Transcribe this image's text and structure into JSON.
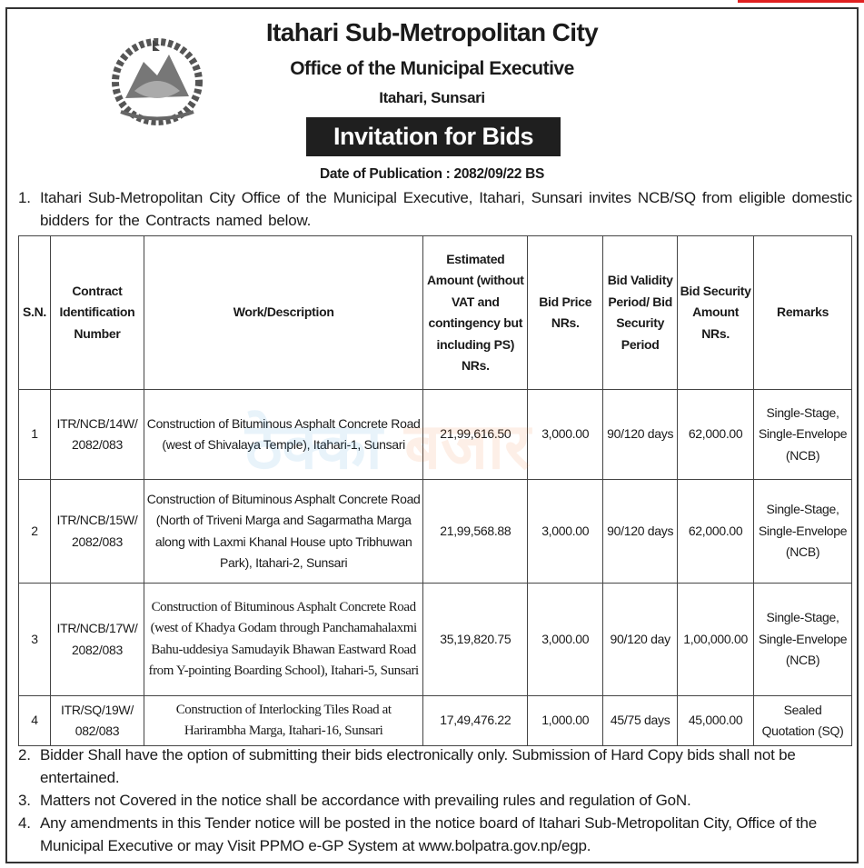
{
  "header": {
    "org": "Itahari Sub-Metropolitan City",
    "office": "Office of the Municipal Executive",
    "location": "Itahari, Sunsari",
    "title": "Invitation for Bids",
    "date": "Date of Publication : 2082/09/22 BS",
    "emblem_icon": "nepal-government-emblem"
  },
  "watermark": {
    "part1": "ठेक्का",
    "part2": "बजार"
  },
  "paragraphs": [
    {
      "num": "1.",
      "text": "Itahari Sub-Metropolitan City Office of the Municipal Executive, Itahari, Sunsari invites NCB/SQ from eligible domestic bidders for the Contracts named below."
    },
    {
      "num": "2.",
      "text": "Bidder Shall have the option of submitting their bids electronically only. Submission of Hard Copy bids shall not be entertained."
    },
    {
      "num": "3.",
      "text": "Matters not Covered in the notice shall be accordance with prevailing rules and regulation of GoN."
    },
    {
      "num": "4.",
      "text": "Any amendments in this Tender notice will be posted in the notice board of Itahari Sub-Metropolitan City, Office of the Municipal Executive or may Visit PPMO e-GP System at www.bolpatra.gov.np/egp."
    }
  ],
  "table": {
    "headers": [
      "S.N.",
      "Contract Identification Number",
      "Work/Description",
      "Estimated Amount (without VAT and contingency but including PS) NRs.",
      "Bid Price NRs.",
      "Bid Validity Period/ Bid Security Period",
      "Bid Security Amount NRs.",
      "Remarks"
    ],
    "rows": [
      [
        "1",
        "ITR/NCB/14W/ 2082/083",
        "Construction of Bituminous Asphalt Concrete Road (west of Shivalaya Temple), Itahari-1, Sunsari",
        "21,99,616.50",
        "3,000.00",
        "90/120 days",
        "62,000.00",
        "Single-Stage, Single-Envelope (NCB)"
      ],
      [
        "2",
        "ITR/NCB/15W/ 2082/083",
        "Construction of Bituminous Asphalt Concrete Road (North of Triveni Marga and Sagarmatha Marga along with Laxmi Khanal House upto Tribhuwan Park), Itahari-2, Sunsari",
        "21,99,568.88",
        "3,000.00",
        "90/120 days",
        "62,000.00",
        "Single-Stage, Single-Envelope (NCB)"
      ],
      [
        "3",
        "ITR/NCB/17W/ 2082/083",
        "Construction of Bituminous Asphalt Concrete Road (west of Khadya Godam through Panchamahalaxmi Bahu-uddesiya Samudayik Bhawan Eastward Road from Y-pointing Boarding School), Itahari-5, Sunsari",
        "35,19,820.75",
        "3,000.00",
        "90/120 day",
        "1,00,000.00",
        "Single-Stage, Single-Envelope (NCB)"
      ],
      [
        "4",
        "ITR/SQ/19W/ 082/083",
        "Construction of Interlocking Tiles Road at Harirambha Marga, Itahari-16, Sunsari",
        "17,49,476.22",
        "1,000.00",
        "45/75 days",
        "45,000.00",
        "Sealed Quotation (SQ)"
      ]
    ]
  }
}
